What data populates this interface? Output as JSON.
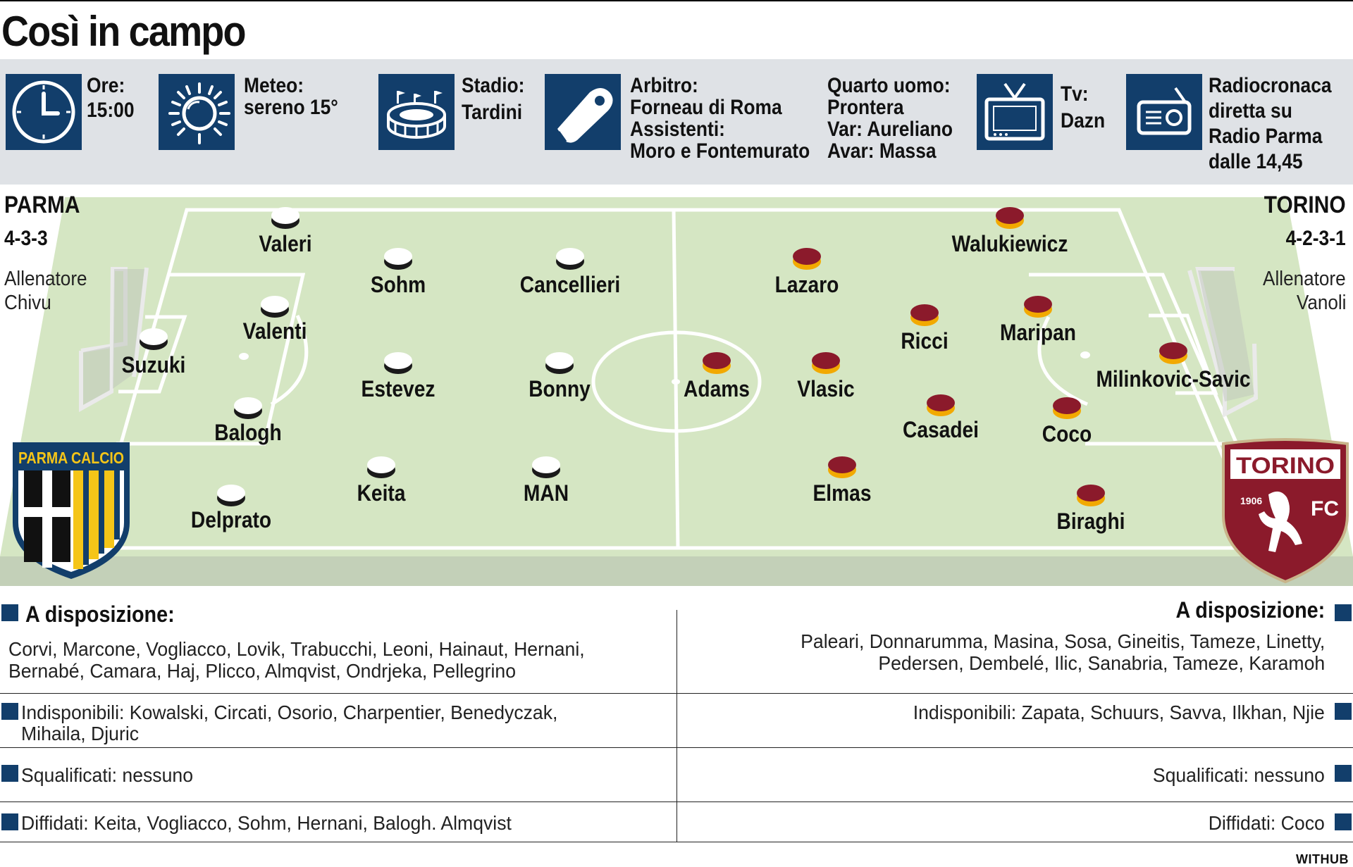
{
  "title": "Così in campo",
  "info": {
    "time": {
      "label": "Ore:",
      "value": "15:00",
      "icon": "clock-icon"
    },
    "weather": {
      "label": "Meteo:",
      "value": "sereno 15°",
      "icon": "sun-icon"
    },
    "stadium": {
      "label": "Stadio:",
      "value": "Tardini",
      "icon": "stadium-icon"
    },
    "referee": {
      "label": "Arbitro:",
      "value": "Forneau di Roma",
      "assistants_label": "Assistenti:",
      "assistants": "Moro e Fontemurato",
      "icon": "whistle-icon"
    },
    "officials": {
      "fourth": "Quarto uomo:",
      "fourth_value": "Prontera",
      "var": "Var: Aureliano",
      "avar": "Avar: Massa"
    },
    "tv": {
      "label": "Tv:",
      "value": "Dazn",
      "icon": "tv-icon"
    },
    "radio": {
      "line1": "Radiocronaca",
      "line2": "diretta su",
      "line3": "Radio Parma",
      "line4": "dalle 14,45",
      "icon": "radio-icon"
    }
  },
  "home": {
    "name": "PARMA",
    "formation": "4-3-3",
    "coach_label": "Allenatore",
    "coach": "Chivu",
    "badge_text": "PARMA CALCIO",
    "colors": {
      "shirt": "#ffffff",
      "crest_blue": "#123e6b",
      "crest_yellow": "#f5c518"
    },
    "players": [
      {
        "name": "Suzuki"
      },
      {
        "name": "Valeri"
      },
      {
        "name": "Valenti"
      },
      {
        "name": "Balogh"
      },
      {
        "name": "Delprato"
      },
      {
        "name": "Sohm"
      },
      {
        "name": "Estevez"
      },
      {
        "name": "Keita"
      },
      {
        "name": "Cancellieri"
      },
      {
        "name": "Bonny"
      },
      {
        "name": "MAN"
      }
    ],
    "bench": {
      "heading": "A disposizione:",
      "list_line1": "Corvi, Marcone, Vogliacco, Lovik, Trabucchi, Leoni, Hainaut, Hernani,",
      "list_line2": "Bernabé, Camara, Haj, Plicco, Almqvist, Ondrjeka, Pellegrino",
      "unavailable_line1": "Indisponibili: Kowalski, Circati, Osorio, Charpentier, Benedyczak,",
      "unavailable_line2": "Mihaila, Djuric",
      "suspended": "Squalificati: nessuno",
      "warned": "Diffidati: Keita, Vogliacco, Sohm, Hernani, Balogh. Almqvist"
    }
  },
  "away": {
    "name": "TORINO",
    "formation": "4-2-3-1",
    "coach_label": "Allenatore",
    "coach": "Vanoli",
    "badge_text": "TORINO",
    "badge_year": "1906",
    "badge_fc": "FC",
    "colors": {
      "shirt": "#8b1a2b",
      "trim": "#f2a900",
      "crest": "#8b1a2b"
    },
    "players": [
      {
        "name": "Milinkovic-Savic"
      },
      {
        "name": "Walukiewicz"
      },
      {
        "name": "Maripan"
      },
      {
        "name": "Coco"
      },
      {
        "name": "Biraghi"
      },
      {
        "name": "Ricci"
      },
      {
        "name": "Casadei"
      },
      {
        "name": "Lazaro"
      },
      {
        "name": "Vlasic"
      },
      {
        "name": "Elmas"
      },
      {
        "name": "Adams"
      }
    ],
    "bench": {
      "heading": "A disposizione:",
      "list_line1": "Paleari, Donnarumma, Masina, Sosa, Gineitis, Tameze, Linetty,",
      "list_line2": "Pedersen, Dembelé, Ilic, Sanabria, Tameze, Karamoh",
      "unavailable": "Indisponibili: Zapata, Schuurs, Savva, Ilkhan, Njie",
      "suspended": "Squalificati: nessuno",
      "warned": "Diffidati: Coco"
    }
  },
  "pitch_color": "#d5e6c3",
  "credit": "WITHUB"
}
